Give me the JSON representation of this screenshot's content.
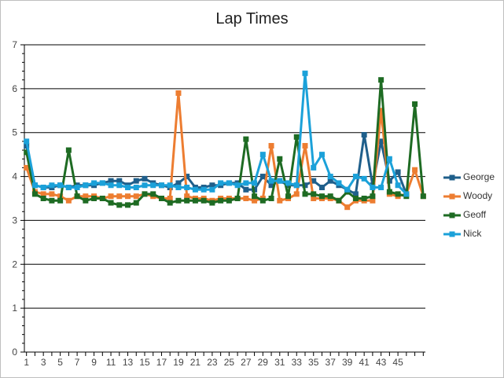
{
  "chart_data": {
    "type": "line",
    "title": "Lap Times",
    "xlabel": "",
    "ylabel": "",
    "ylim": [
      0,
      7
    ],
    "yticks": [
      0,
      1,
      2,
      3,
      4,
      5,
      6,
      7
    ],
    "x": [
      1,
      2,
      3,
      4,
      5,
      6,
      7,
      8,
      9,
      10,
      11,
      12,
      13,
      14,
      15,
      16,
      17,
      18,
      19,
      20,
      21,
      22,
      23,
      24,
      25,
      26,
      27,
      28,
      29,
      30,
      31,
      32,
      33,
      34,
      35,
      36,
      37,
      38,
      39,
      40,
      41,
      42,
      43,
      44,
      45,
      46,
      47,
      48
    ],
    "xtick_labels": [
      "1",
      "3",
      "5",
      "7",
      "9",
      "11",
      "13",
      "15",
      "17",
      "19",
      "21",
      "23",
      "25",
      "27",
      "29",
      "31",
      "33",
      "35",
      "37",
      "39",
      "41",
      "43",
      "45"
    ],
    "grid": "horizontal",
    "legend_position": "right",
    "series": [
      {
        "name": "George",
        "color": "#1f5f8b",
        "values": [
          4.7,
          3.8,
          3.75,
          3.75,
          3.8,
          3.75,
          3.8,
          3.8,
          3.8,
          3.85,
          3.9,
          3.9,
          3.8,
          3.9,
          3.95,
          3.85,
          3.8,
          3.75,
          3.85,
          4.0,
          3.75,
          3.75,
          3.8,
          3.8,
          3.85,
          3.85,
          3.7,
          3.7,
          4.0,
          3.8,
          3.9,
          3.8,
          3.8,
          3.8,
          3.9,
          3.75,
          3.9,
          3.8,
          3.7,
          3.6,
          4.95,
          3.8,
          4.8,
          3.9,
          4.1,
          3.6,
          null,
          null
        ]
      },
      {
        "name": "Woody",
        "color": "#ed7d31",
        "values": [
          4.2,
          3.65,
          3.6,
          3.6,
          3.55,
          3.45,
          3.55,
          3.55,
          3.55,
          3.5,
          3.55,
          3.55,
          3.55,
          3.55,
          3.6,
          3.55,
          3.5,
          3.5,
          5.9,
          3.55,
          3.5,
          3.5,
          3.45,
          3.5,
          3.5,
          3.5,
          3.5,
          3.45,
          3.5,
          4.7,
          3.45,
          3.5,
          3.6,
          4.7,
          3.5,
          3.5,
          3.5,
          3.45,
          3.3,
          3.45,
          3.45,
          3.45,
          5.5,
          3.6,
          3.55,
          3.6,
          4.15,
          3.55
        ]
      },
      {
        "name": "Geoff",
        "color": "#1e6b23",
        "values": [
          4.55,
          3.6,
          3.5,
          3.45,
          3.45,
          4.6,
          3.55,
          3.45,
          3.5,
          3.5,
          3.4,
          3.35,
          3.35,
          3.4,
          3.6,
          3.6,
          3.5,
          3.4,
          3.45,
          3.45,
          3.45,
          3.45,
          3.4,
          3.45,
          3.45,
          3.5,
          4.85,
          3.55,
          3.45,
          3.5,
          4.4,
          3.55,
          4.9,
          3.6,
          3.6,
          3.55,
          3.55,
          3.45,
          3.65,
          3.5,
          3.5,
          3.55,
          6.2,
          3.65,
          3.6,
          3.55,
          5.65,
          3.55
        ]
      },
      {
        "name": "Nick",
        "color": "#1ba1d9",
        "values": [
          4.8,
          3.8,
          3.75,
          3.8,
          3.8,
          3.75,
          3.75,
          3.8,
          3.85,
          3.85,
          3.8,
          3.8,
          3.75,
          3.75,
          3.8,
          3.8,
          3.8,
          3.8,
          3.75,
          3.75,
          3.7,
          3.7,
          3.7,
          3.85,
          3.85,
          3.8,
          3.85,
          3.85,
          4.5,
          3.9,
          3.9,
          3.85,
          3.8,
          6.35,
          4.2,
          4.5,
          4.0,
          3.85,
          3.7,
          4.0,
          3.95,
          3.75,
          3.75,
          4.4,
          3.8,
          3.6,
          null,
          null
        ]
      }
    ]
  }
}
